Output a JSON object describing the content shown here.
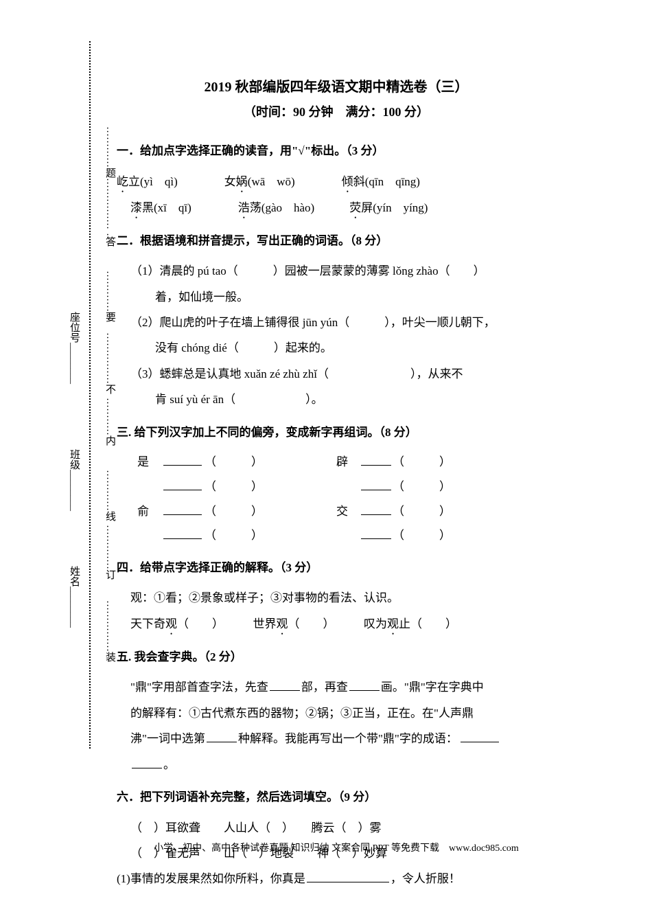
{
  "binding": {
    "name_label": "姓名________",
    "class_label": "班级________",
    "seat_label": "座位号________",
    "zhuang": "……………装",
    "ding": "……………订",
    "xian": "…………线",
    "nei": "…………内",
    "bu": "……………不",
    "yao": "…………要",
    "da": "…………答",
    "ti": "…………题……………"
  },
  "doc": {
    "title": "2019 秋部编版四年级语文期中精选卷（三）",
    "subtitle": "（时间：90 分钟　满分：100 分）"
  },
  "s1": {
    "head": "一．给加点字选择正确的读音，用\"√\"标出。（3 分）",
    "r1a_pre": "屹",
    "r1a_post": "立(yì　qì)",
    "r1b_pre": "女",
    "r1b_u": "娲",
    "r1b_post": "(wā　wō)",
    "r1c_u": "倾",
    "r1c_post": "斜(qīn　qīng)",
    "r2a_u": "漆",
    "r2a_post": "黑(xī　qī)",
    "r2b_u": "浩",
    "r2b_post": "荡(gào　hào)",
    "r2c_u": "荧",
    "r2c_post": "屏(yín　yíng)"
  },
  "s2": {
    "head": "二．根据语境和拼音提示，写出正确的词语。（8 分）",
    "l1": "（1）清晨的 pú tao（　　　）园被一层蒙蒙的薄雾 lǒng zhào（　　）",
    "l1b": "着，如仙境一般。",
    "l2": "（2）爬山虎的叶子在墙上铺得很 jūn yún（　　　），叶尖一顺儿朝下，",
    "l2b": "没有 chóng dié（　　　）起来的。",
    "l3": "（3）蟋蟀总是认真地 xuǎn zé zhù zhǐ（　　　　　　　），从来不",
    "l3b": "肯 suí yù ér ān（　　　　　　）。"
  },
  "s3": {
    "head": "三. 给下列汉字加上不同的偏旁，变成新字再组词。（8 分）",
    "r1l": "是　",
    "r1l_p": "（　　　）",
    "r1r": "辟　",
    "r1r_p": "（　　　）",
    "r2l_p": "（　　　）",
    "r2r_p": "（　　　）",
    "r3l": "俞　",
    "r3l_p": "（　　　）",
    "r3r": "交　",
    "r3r_p": "（　　　）",
    "r4l_p": "（　　　）",
    "r4r_p": "（　　　）"
  },
  "s4": {
    "head": "四．给带点字选择正确的解释。（3 分）",
    "l1": "观：①看；②景象或样子；③对事物的看法、认识。",
    "p1_pre": "天下奇",
    "p1_u": "观",
    "p1_post": "（　　）",
    "p2_pre": "世界",
    "p2_u": "观",
    "p2_post": "（　　）",
    "p3_pre": "叹为",
    "p3_u": "观",
    "p3_post": "止（　　）"
  },
  "s5": {
    "head": "五. 我会查字典。（2 分）",
    "t1": "\"鼎\"字用部首查字法，先查",
    "t2": "部，再查",
    "t3": "画。\"鼎\"字在字典中",
    "t4": "的解释有：①古代煮东西的器物；②锅；③正当，正在。在\"人声鼎",
    "t5": "沸\"一词中选第",
    "t6": "种解释。我能再写出一个带\"鼎\"字的成语：",
    "t7": "。"
  },
  "s6": {
    "head": "六．把下列词语补充完整，然后选词填空。（9 分）",
    "l1": "（　）耳欲聋　　人山人（　）　　腾云（　）雾",
    "l2": "（　）雀无声　　山（　）地裂　　神（　）妙算",
    "l3a": "(1)事情的发展果然如你所料，你真是",
    "l3b": "，令人折服！"
  },
  "footer": "小学、初中、高中各种试卷真题 知识归纳 文案合同 PPT 等免费下载　www.doc985.com"
}
